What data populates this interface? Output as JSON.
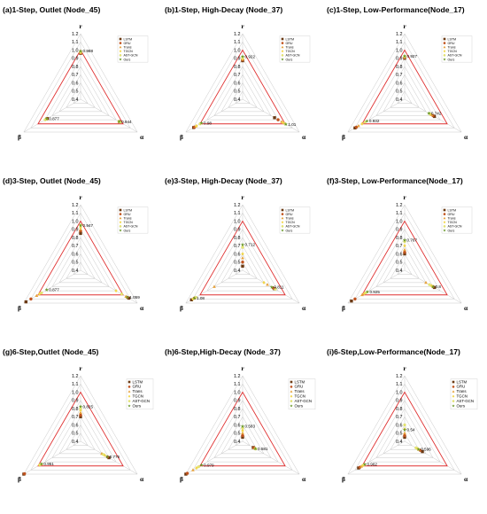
{
  "colors": {
    "grid": "#c8c8c8",
    "boundary": "#e03131",
    "LSTM": "#6b3a14",
    "GRU": "#c0521d",
    "Trans": "#e6a23c",
    "TGCN": "#f2d64b",
    "AST-GCN": "#e8e870",
    "Ours": "#6c9a2e"
  },
  "series_styles": {
    "LSTM": "square",
    "GRU": "circle",
    "Trans": "triangle",
    "TGCN": "diamond",
    "AST-GCN": "circle-small",
    "Ours": "star"
  },
  "chart_data": [
    {
      "type": "radar",
      "title": "(a)1-Step, Outlet (Node_45)",
      "axes": [
        "r",
        "β",
        "α"
      ],
      "r_ticks": [
        "0.4",
        "0.5",
        "0.6",
        "0.7",
        "0.8",
        "0.9",
        "1.0",
        "1.1",
        "1.2"
      ],
      "range": [
        0.4,
        1.2
      ],
      "boundary": 1.0,
      "legend_labels": [
        "LSTM",
        "GRU",
        "Trans",
        "TGCN",
        "AST-GCN",
        "Ours"
      ],
      "series": [
        {
          "name": "LSTM",
          "values": [
            0.96,
            0.87,
            0.95
          ]
        },
        {
          "name": "GRU",
          "values": [
            0.965,
            0.875,
            0.945
          ]
        },
        {
          "name": "Trans",
          "values": [
            0.975,
            0.885,
            0.955
          ]
        },
        {
          "name": "TGCN",
          "values": [
            0.97,
            0.88,
            0.94
          ]
        },
        {
          "name": "AST-GCN",
          "values": [
            0.98,
            0.9,
            0.96
          ]
        },
        {
          "name": "Ours",
          "values": [
            0.988,
            0.877,
            0.944
          ]
        }
      ],
      "data_labels": [
        "0.988",
        "0.877",
        "0.944"
      ]
    },
    {
      "type": "radar",
      "title": "(b)1-Step, High-Decay (Node_37)",
      "axes": [
        "r",
        "β",
        "α"
      ],
      "r_ticks": [
        "0.4",
        "0.5",
        "0.6",
        "0.7",
        "0.8",
        "0.9",
        "1.0",
        "1.1",
        "1.2"
      ],
      "range": [
        0.4,
        1.2
      ],
      "boundary": 1.0,
      "legend_labels": [
        "LSTM",
        "GRU",
        "Trans",
        "TGCN",
        "AST-GCN",
        "Ours"
      ],
      "series": [
        {
          "name": "LSTM",
          "values": [
            0.87,
            1.09,
            0.85
          ]
        },
        {
          "name": "GRU",
          "values": [
            0.88,
            1.08,
            0.9
          ]
        },
        {
          "name": "Trans",
          "values": [
            0.9,
            1.06,
            0.95
          ]
        },
        {
          "name": "TGCN",
          "values": [
            0.89,
            1.05,
            0.97
          ]
        },
        {
          "name": "AST-GCN",
          "values": [
            0.91,
            1.0,
            1.0
          ]
        },
        {
          "name": "Ours",
          "values": [
            0.922,
            0.98,
            1.01
          ]
        }
      ],
      "data_labels": [
        "0.922",
        "0.98",
        "1.01"
      ]
    },
    {
      "type": "radar",
      "title": "(c)1-Step, Low-Performance(Node_17)",
      "axes": [
        "r",
        "β",
        "α"
      ],
      "r_ticks": [
        "0.4",
        "0.5",
        "0.6",
        "0.7",
        "0.8",
        "0.9",
        "1.0",
        "1.1",
        "1.2"
      ],
      "range": [
        0.4,
        1.2
      ],
      "boundary": 1.0,
      "legend_labels": [
        "LSTM",
        "GRU",
        "Trans",
        "TGCN",
        "AST-GCN",
        "Ours"
      ],
      "series": [
        {
          "name": "LSTM",
          "values": [
            0.9,
            1.1,
            0.82
          ]
        },
        {
          "name": "GRU",
          "values": [
            0.91,
            1.08,
            0.8
          ]
        },
        {
          "name": "Trans",
          "values": [
            0.92,
            1.05,
            0.78
          ]
        },
        {
          "name": "TGCN",
          "values": [
            0.915,
            1.0,
            0.76
          ]
        },
        {
          "name": "AST-GCN",
          "values": [
            0.925,
            0.96,
            0.75
          ]
        },
        {
          "name": "Ours",
          "values": [
            0.927,
            0.932,
            0.742
          ]
        }
      ],
      "data_labels": [
        "0.927",
        "0.932",
        "0.742"
      ]
    },
    {
      "type": "radar",
      "title": "(d)3-Step, Outlet (Node_45)",
      "axes": [
        "r",
        "β",
        "α"
      ],
      "r_ticks": [
        "0.4",
        "0.5",
        "0.6",
        "0.7",
        "0.8",
        "0.9",
        "1.0",
        "1.1",
        "1.2"
      ],
      "range": [
        0.4,
        1.2
      ],
      "boundary": 1.0,
      "legend_labels": [
        "LSTM",
        "GRU",
        "Trans",
        "TGCN",
        "AST-GCN",
        "Ours"
      ],
      "series": [
        {
          "name": "LSTM",
          "values": [
            0.85,
            1.17,
            1.08
          ]
        },
        {
          "name": "GRU",
          "values": [
            0.88,
            1.1,
            1.06
          ]
        },
        {
          "name": "Trans",
          "values": [
            0.9,
            1.02,
            1.04
          ]
        },
        {
          "name": "TGCN",
          "values": [
            0.92,
            0.98,
            0.9
          ]
        },
        {
          "name": "AST-GCN",
          "values": [
            0.95,
            0.95,
            0.98
          ]
        },
        {
          "name": "Ours",
          "values": [
            0.947,
            0.877,
            1.059
          ]
        }
      ],
      "data_labels": [
        "0.947",
        "0.877",
        "1.059"
      ]
    },
    {
      "type": "radar",
      "title": "(e)3-Step, High-Decay (Node_37)",
      "axes": [
        "r",
        "β",
        "α"
      ],
      "r_ticks": [
        "0.4",
        "0.5",
        "0.6",
        "0.7",
        "0.8",
        "0.9",
        "1.0",
        "1.1",
        "1.2"
      ],
      "range": [
        0.4,
        1.2
      ],
      "boundary": 1.0,
      "legend_labels": [
        "LSTM",
        "GRU",
        "Trans",
        "TGCN",
        "AST-GCN",
        "Ours"
      ],
      "series": [
        {
          "name": "LSTM",
          "values": [
            0.45,
            1.12,
            0.85
          ]
        },
        {
          "name": "GRU",
          "values": [
            0.5,
            1.08,
            0.83
          ]
        },
        {
          "name": "Trans",
          "values": [
            0.55,
            0.8,
            0.75
          ]
        },
        {
          "name": "TGCN",
          "values": [
            0.6,
            1.1,
            0.7
          ]
        },
        {
          "name": "AST-GCN",
          "values": [
            0.68,
            1.06,
            0.86
          ]
        },
        {
          "name": "Ours",
          "values": [
            0.712,
            1.08,
            0.811
          ]
        }
      ],
      "data_labels": [
        "0.712",
        "1.08",
        "0.811"
      ]
    },
    {
      "type": "radar",
      "title": "(f)3-Step, Low-Performance(Node_17)",
      "axes": [
        "r",
        "β",
        "α"
      ],
      "r_ticks": [
        "0.4",
        "0.5",
        "0.6",
        "0.7",
        "0.8",
        "0.9",
        "1.0",
        "1.1",
        "1.2"
      ],
      "range": [
        0.4,
        1.2
      ],
      "boundary": 1.0,
      "legend_labels": [
        "LSTM",
        "GRU",
        "Trans",
        "TGCN",
        "AST-GCN",
        "Ours"
      ],
      "series": [
        {
          "name": "LSTM",
          "values": [
            0.6,
            1.15,
            0.82
          ]
        },
        {
          "name": "GRU",
          "values": [
            0.62,
            1.1,
            0.8
          ]
        },
        {
          "name": "Trans",
          "values": [
            0.65,
            1.0,
            0.7
          ]
        },
        {
          "name": "TGCN",
          "values": [
            0.7,
            0.97,
            0.78
          ]
        },
        {
          "name": "AST-GCN",
          "values": [
            0.75,
            0.95,
            0.75
          ]
        },
        {
          "name": "Ours",
          "values": [
            0.767,
            0.925,
            0.8
          ]
        }
      ],
      "data_labels": [
        "0.767",
        "0.925",
        "0.8"
      ]
    },
    {
      "type": "radar",
      "title": "(g)6-Step,Outlet (Node_45)",
      "axes": [
        "r",
        "β",
        "α"
      ],
      "r_ticks": [
        "0.4",
        "0.5",
        "0.6",
        "0.7",
        "0.8",
        "0.9",
        "1.0",
        "1.1",
        "1.2"
      ],
      "range": [
        0.4,
        1.2
      ],
      "boundary": 1.0,
      "legend_labels": [
        "LSTM",
        "GRU",
        "Trans",
        "TGCN",
        "AST-GCN",
        "Ours"
      ],
      "series": [
        {
          "name": "LSTM",
          "values": [
            0.7,
            1.2,
            0.8
          ]
        },
        {
          "name": "GRU",
          "values": [
            0.72,
            1.19,
            0.78
          ]
        },
        {
          "name": "Trans",
          "values": [
            0.75,
            0.95,
            0.7
          ]
        },
        {
          "name": "TGCN",
          "values": [
            0.78,
            0.98,
            0.74
          ]
        },
        {
          "name": "AST-GCN",
          "values": [
            0.8,
            0.97,
            0.72
          ]
        },
        {
          "name": "Ours",
          "values": [
            0.825,
            0.951,
            0.776
          ]
        }
      ],
      "data_labels": [
        "0.825",
        "0.951",
        "0.776"
      ]
    },
    {
      "type": "radar",
      "title": "(h)6-Step,High-Decay (Node_37)",
      "axes": [
        "r",
        "β",
        "α"
      ],
      "r_ticks": [
        "0.4",
        "0.5",
        "0.6",
        "0.7",
        "0.8",
        "0.9",
        "1.0",
        "1.1",
        "1.2"
      ],
      "range": [
        0.4,
        1.2
      ],
      "boundary": 1.0,
      "legend_labels": [
        "LSTM",
        "GRU",
        "Trans",
        "TGCN",
        "AST-GCN",
        "Ours"
      ],
      "series": [
        {
          "name": "LSTM",
          "values": [
            0.45,
            1.2,
            0.55
          ]
        },
        {
          "name": "GRU",
          "values": [
            0.47,
            1.18,
            0.56
          ]
        },
        {
          "name": "Trans",
          "values": [
            0.5,
            1.1,
            0.57
          ]
        },
        {
          "name": "TGCN",
          "values": [
            0.53,
            1.05,
            0.58
          ]
        },
        {
          "name": "AST-GCN",
          "values": [
            0.56,
            1.02,
            0.585
          ]
        },
        {
          "name": "Ours",
          "values": [
            0.583,
            0.979,
            0.581
          ]
        }
      ],
      "data_labels": [
        "0.583",
        "0.979",
        "0.581"
      ]
    },
    {
      "type": "radar",
      "title": "(i)6-Step,Low-Performance(Node_17)",
      "axes": [
        "r",
        "β",
        "α"
      ],
      "r_ticks": [
        "0.4",
        "0.5",
        "0.6",
        "0.7",
        "0.8",
        "0.9",
        "1.0",
        "1.1",
        "1.2"
      ],
      "range": [
        0.4,
        1.2
      ],
      "boundary": 1.0,
      "legend_labels": [
        "LSTM",
        "GRU",
        "Trans",
        "TGCN",
        "AST-GCN",
        "Ours"
      ],
      "series": [
        {
          "name": "LSTM",
          "values": [
            0.45,
            1.05,
            0.65
          ]
        },
        {
          "name": "GRU",
          "values": [
            0.47,
            1.03,
            0.62
          ]
        },
        {
          "name": "Trans",
          "values": [
            0.5,
            1.01,
            0.6
          ]
        },
        {
          "name": "TGCN",
          "values": [
            0.55,
            0.99,
            0.58
          ]
        },
        {
          "name": "AST-GCN",
          "values": [
            0.6,
            0.97,
            0.56
          ]
        },
        {
          "name": "Ours",
          "values": [
            0.54,
            0.962,
            0.596
          ]
        }
      ],
      "data_labels": [
        "0.54",
        "0.962",
        "0.596"
      ]
    }
  ]
}
